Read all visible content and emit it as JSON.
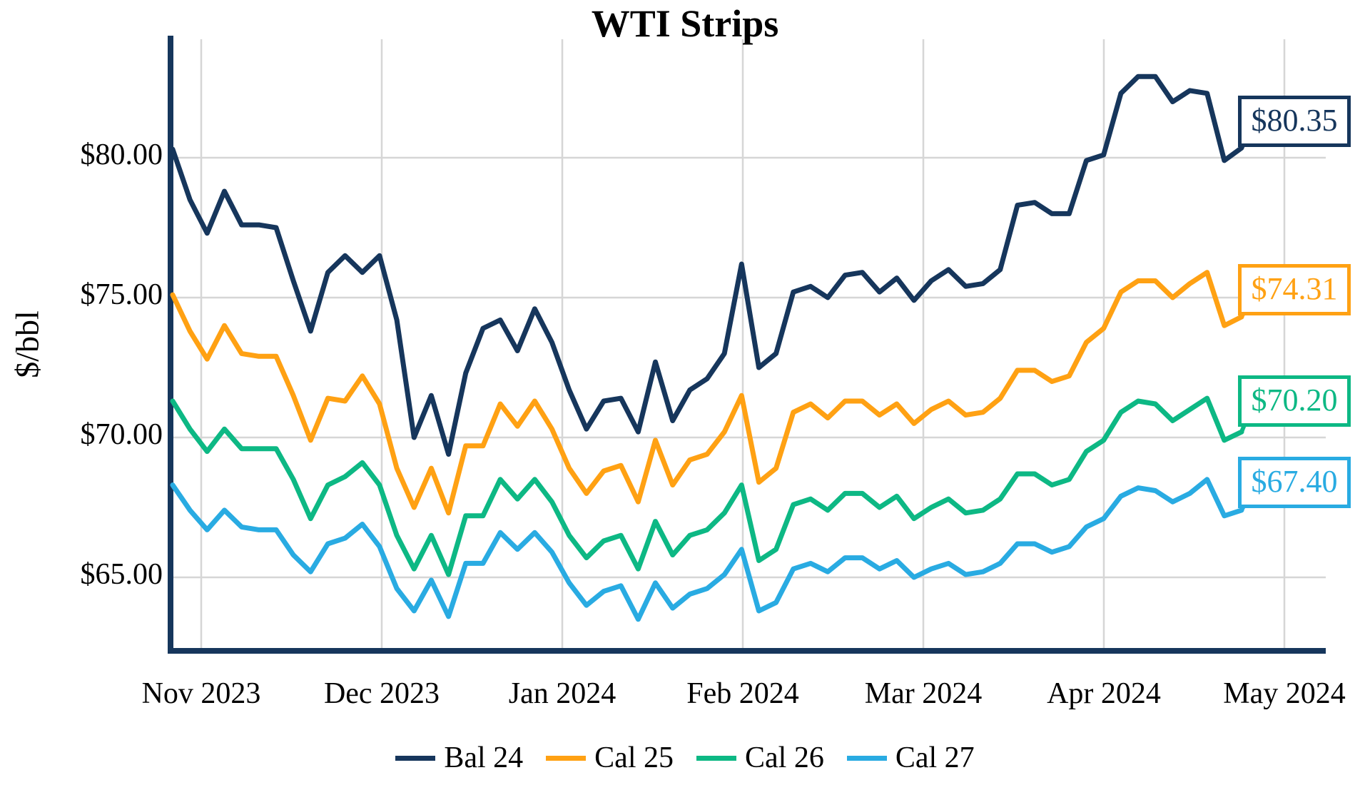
{
  "title": "WTI Strips",
  "y_axis": {
    "label": "$/bbl",
    "tick_labels": [
      "$80.00",
      "$75.00",
      "$70.00",
      "$65.00"
    ],
    "tick_values": [
      80,
      75,
      70,
      65
    ]
  },
  "x_axis": {
    "tick_labels": [
      "Nov 2023",
      "Dec 2023",
      "Jan 2024",
      "Feb 2024",
      "Mar 2024",
      "Apr 2024",
      "May 2024"
    ]
  },
  "legend": {
    "items": [
      {
        "label": "Bal 24",
        "color": "#16365C"
      },
      {
        "label": "Cal 25",
        "color": "#FFA113"
      },
      {
        "label": "Cal 26",
        "color": "#0DB884"
      },
      {
        "label": "Cal 27",
        "color": "#29ABE2"
      }
    ]
  },
  "end_labels": [
    {
      "text": "$80.35",
      "color": "#16365C"
    },
    {
      "text": "$74.31",
      "color": "#FFA113"
    },
    {
      "text": "$70.20",
      "color": "#0DB884"
    },
    {
      "text": "$67.40",
      "color": "#29ABE2"
    }
  ],
  "chart_data": {
    "type": "line",
    "title": "WTI Strips",
    "xlabel": "",
    "ylabel": "$/bbl",
    "x_tick_labels": [
      "Nov 2023",
      "Dec 2023",
      "Jan 2024",
      "Feb 2024",
      "Mar 2024",
      "Apr 2024",
      "May 2024"
    ],
    "ylim": [
      62.5,
      84.5
    ],
    "grid": true,
    "legend_position": "bottom",
    "sampling_note": "values sampled left-to-right at equal intervals across the plotted period (late Oct 2023 through late Apr 2024), in $/bbl",
    "series": [
      {
        "name": "Bal 24",
        "color": "#16365C",
        "end_label": "$80.35",
        "values": [
          80.3,
          78.5,
          77.3,
          78.8,
          77.6,
          77.6,
          77.5,
          75.6,
          73.8,
          75.9,
          76.5,
          75.9,
          76.5,
          74.2,
          70.0,
          71.5,
          69.4,
          72.3,
          73.9,
          74.2,
          73.1,
          74.6,
          73.4,
          71.7,
          70.3,
          71.3,
          71.4,
          70.2,
          72.7,
          70.6,
          71.7,
          72.1,
          73.0,
          76.2,
          72.5,
          73.0,
          75.2,
          75.4,
          75.0,
          75.8,
          75.9,
          75.2,
          75.7,
          74.9,
          75.6,
          76.0,
          75.4,
          75.5,
          76.0,
          78.3,
          78.4,
          78.0,
          78.0,
          79.9,
          80.1,
          82.3,
          82.9,
          82.9,
          82.0,
          82.4,
          82.3,
          79.9,
          80.35
        ]
      },
      {
        "name": "Cal 25",
        "color": "#FFA113",
        "end_label": "$74.31",
        "values": [
          75.1,
          73.8,
          72.8,
          74.0,
          73.0,
          72.9,
          72.9,
          71.5,
          69.9,
          71.4,
          71.3,
          72.2,
          71.2,
          68.9,
          67.5,
          68.9,
          67.3,
          69.7,
          69.7,
          71.2,
          70.4,
          71.3,
          70.3,
          68.9,
          68.0,
          68.8,
          69.0,
          67.7,
          69.9,
          68.3,
          69.2,
          69.4,
          70.2,
          71.5,
          68.4,
          68.9,
          70.9,
          71.2,
          70.7,
          71.3,
          71.3,
          70.8,
          71.2,
          70.5,
          71.0,
          71.3,
          70.8,
          70.9,
          71.4,
          72.4,
          72.4,
          72.0,
          72.2,
          73.4,
          73.9,
          75.2,
          75.6,
          75.6,
          75.0,
          75.5,
          75.9,
          74.0,
          74.31
        ]
      },
      {
        "name": "Cal 26",
        "color": "#0DB884",
        "end_label": "$70.20",
        "values": [
          71.3,
          70.3,
          69.5,
          70.3,
          69.6,
          69.6,
          69.6,
          68.5,
          67.1,
          68.3,
          68.6,
          69.1,
          68.3,
          66.5,
          65.3,
          66.5,
          65.1,
          67.2,
          67.2,
          68.5,
          67.8,
          68.5,
          67.7,
          66.5,
          65.7,
          66.3,
          66.5,
          65.3,
          67.0,
          65.8,
          66.5,
          66.7,
          67.3,
          68.3,
          65.6,
          66.0,
          67.6,
          67.8,
          67.4,
          68.0,
          68.0,
          67.5,
          67.9,
          67.1,
          67.5,
          67.8,
          67.3,
          67.4,
          67.8,
          68.7,
          68.7,
          68.3,
          68.5,
          69.5,
          69.9,
          70.9,
          71.3,
          71.2,
          70.6,
          71.0,
          71.4,
          69.9,
          70.2
        ]
      },
      {
        "name": "Cal 27",
        "color": "#29ABE2",
        "end_label": "$67.40",
        "values": [
          68.3,
          67.4,
          66.7,
          67.4,
          66.8,
          66.7,
          66.7,
          65.8,
          65.2,
          66.2,
          66.4,
          66.9,
          66.1,
          64.6,
          63.8,
          64.9,
          63.6,
          65.5,
          65.5,
          66.6,
          66.0,
          66.6,
          65.9,
          64.8,
          64.0,
          64.5,
          64.7,
          63.5,
          64.8,
          63.9,
          64.4,
          64.6,
          65.1,
          66.0,
          63.8,
          64.1,
          65.3,
          65.5,
          65.2,
          65.7,
          65.7,
          65.3,
          65.6,
          65.0,
          65.3,
          65.5,
          65.1,
          65.2,
          65.5,
          66.2,
          66.2,
          65.9,
          66.1,
          66.8,
          67.1,
          67.9,
          68.2,
          68.1,
          67.7,
          68.0,
          68.5,
          67.2,
          67.4
        ]
      }
    ]
  }
}
